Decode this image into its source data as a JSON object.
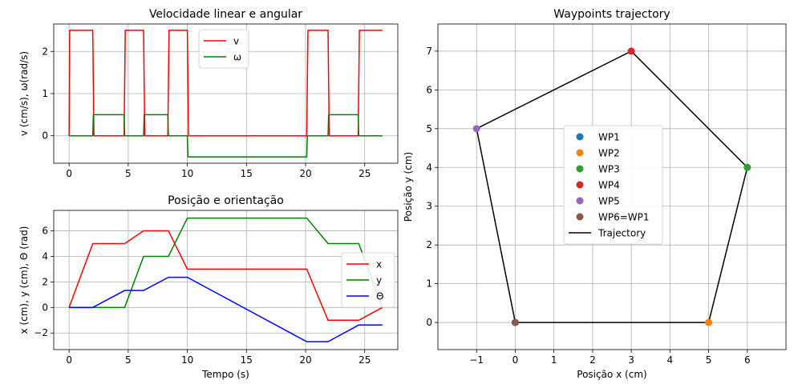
{
  "chart_data": [
    {
      "type": "line",
      "title": "Velocidade linear e angular",
      "xlabel": "",
      "ylabel": "v (cm/s), ω(rad/s)",
      "xlim": [
        -1.3,
        27.8
      ],
      "ylim": [
        -0.65,
        2.65
      ],
      "xticks": [
        0,
        5,
        10,
        15,
        20,
        25
      ],
      "yticks": [
        0,
        1,
        2
      ],
      "grid": true,
      "legend": "top-center",
      "series": [
        {
          "name": "v",
          "color": "#ff0000",
          "x": [
            0,
            0.05,
            2,
            2.1,
            4.65,
            4.75,
            6.3,
            6.4,
            8.35,
            8.45,
            10,
            10.1,
            20.1,
            20.2,
            21.9,
            22,
            24.45,
            24.55,
            26.5
          ],
          "y": [
            0,
            2.5,
            2.5,
            0,
            0,
            2.5,
            2.5,
            0,
            0,
            2.5,
            2.5,
            0,
            0,
            2.5,
            2.5,
            0,
            0,
            2.5,
            2.5
          ]
        },
        {
          "name": "ω",
          "color": "#008000",
          "x": [
            0,
            2,
            2.05,
            4.65,
            4.7,
            6.3,
            6.35,
            8.35,
            8.4,
            10,
            10.05,
            20.1,
            20.15,
            21.9,
            21.95,
            24.45,
            24.5,
            26.5
          ],
          "y": [
            0,
            0,
            0.5,
            0.5,
            0,
            0,
            0.5,
            0.5,
            0,
            0,
            -0.5,
            -0.5,
            0,
            0,
            0.5,
            0.5,
            0,
            0
          ]
        }
      ]
    },
    {
      "type": "line",
      "title": "Posição e orientação",
      "xlabel": "Tempo (s)",
      "ylabel": "x (cm), y (cm), Θ (rad)",
      "xlim": [
        -1.3,
        27.8
      ],
      "ylim": [
        -3.3,
        7.6
      ],
      "xticks": [
        0,
        5,
        10,
        15,
        20,
        25
      ],
      "yticks": [
        -2,
        0,
        2,
        4,
        6
      ],
      "grid": true,
      "legend": "center-right",
      "series": [
        {
          "name": "x",
          "color": "#ff0000",
          "x": [
            0,
            2,
            4.7,
            6.3,
            8.4,
            10,
            20.1,
            21.9,
            24.5,
            26.5
          ],
          "y": [
            0,
            5,
            5,
            6,
            6,
            3,
            3,
            -1,
            -1,
            0
          ]
        },
        {
          "name": "y",
          "color": "#008000",
          "x": [
            0,
            2,
            4.7,
            6.3,
            8.4,
            10,
            20.1,
            21.9,
            24.5,
            26.5
          ],
          "y": [
            0,
            0,
            0,
            4,
            4,
            7,
            7,
            5,
            5,
            0
          ]
        },
        {
          "name": "Θ",
          "color": "#0000ff",
          "x": [
            0,
            2,
            4.7,
            6.3,
            8.4,
            10,
            20.1,
            21.9,
            24.5,
            26.5
          ],
          "y": [
            0,
            0,
            1.33,
            1.33,
            2.36,
            2.36,
            -2.68,
            -2.68,
            -1.37,
            -1.37
          ]
        }
      ]
    },
    {
      "type": "scatter",
      "title": "Waypoints trajectory",
      "xlabel": "Posição x (cm)",
      "ylabel": "Posição y (cm)",
      "xlim": [
        -2,
        7
      ],
      "ylim": [
        -0.7,
        7.7
      ],
      "xticks": [
        -1,
        0,
        1,
        2,
        3,
        4,
        5,
        6
      ],
      "yticks": [
        0,
        1,
        2,
        3,
        4,
        5,
        6,
        7
      ],
      "grid": true,
      "legend": "center",
      "points": [
        {
          "name": "WP1",
          "x": 0,
          "y": 0,
          "color": "#1f77b4"
        },
        {
          "name": "WP2",
          "x": 5,
          "y": 0,
          "color": "#ff7f0e"
        },
        {
          "name": "WP3",
          "x": 6,
          "y": 4,
          "color": "#2ca02c"
        },
        {
          "name": "WP4",
          "x": 3,
          "y": 7,
          "color": "#d62728"
        },
        {
          "name": "WP5",
          "x": -1,
          "y": 5,
          "color": "#9467bd"
        },
        {
          "name": "WP6=WP1",
          "x": 0,
          "y": 0,
          "color": "#8c564b"
        }
      ],
      "trajectory": {
        "name": "Trajectory",
        "color": "#000000",
        "x": [
          0,
          5,
          6,
          3,
          -1,
          0
        ],
        "y": [
          0,
          0,
          4,
          7,
          5,
          0
        ]
      }
    }
  ]
}
